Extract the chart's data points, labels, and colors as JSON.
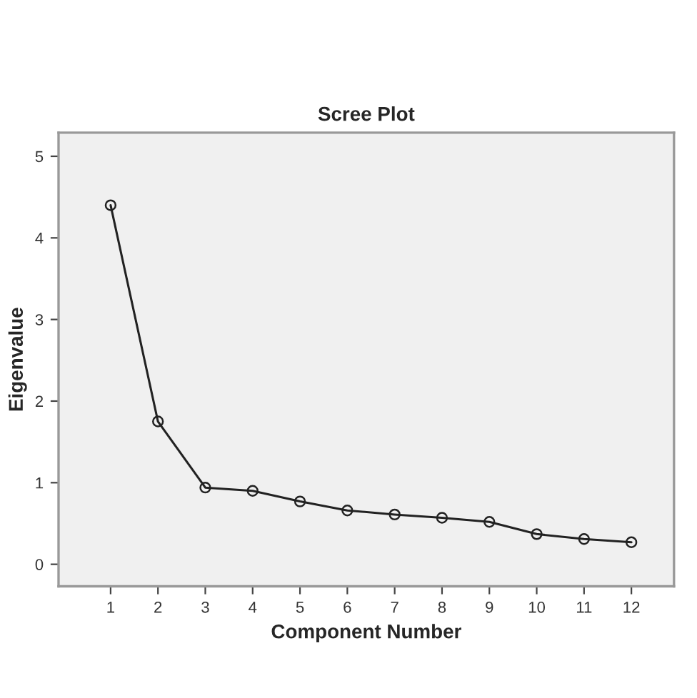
{
  "chart_data": {
    "type": "line",
    "title": "Scree Plot",
    "xlabel": "Component Number",
    "ylabel": "Eigenvalue",
    "x": [
      1,
      2,
      3,
      4,
      5,
      6,
      7,
      8,
      9,
      10,
      11,
      12
    ],
    "series": [
      {
        "color": "#222222",
        "values": [
          4.4,
          1.75,
          0.94,
          0.9,
          0.77,
          0.66,
          0.61,
          0.57,
          0.52,
          0.37,
          0.31,
          0.27
        ]
      }
    ],
    "xlim": [
      -0.1,
      12.9
    ],
    "xticks": [
      1,
      2,
      3,
      4,
      5,
      6,
      7,
      8,
      9,
      10,
      11,
      12
    ],
    "ylim": [
      -0.27,
      5.29
    ],
    "yticks": [
      0,
      1,
      2,
      3,
      4,
      5
    ],
    "marker": "circle",
    "line_style": "solid",
    "grid": false,
    "legend": false
  }
}
